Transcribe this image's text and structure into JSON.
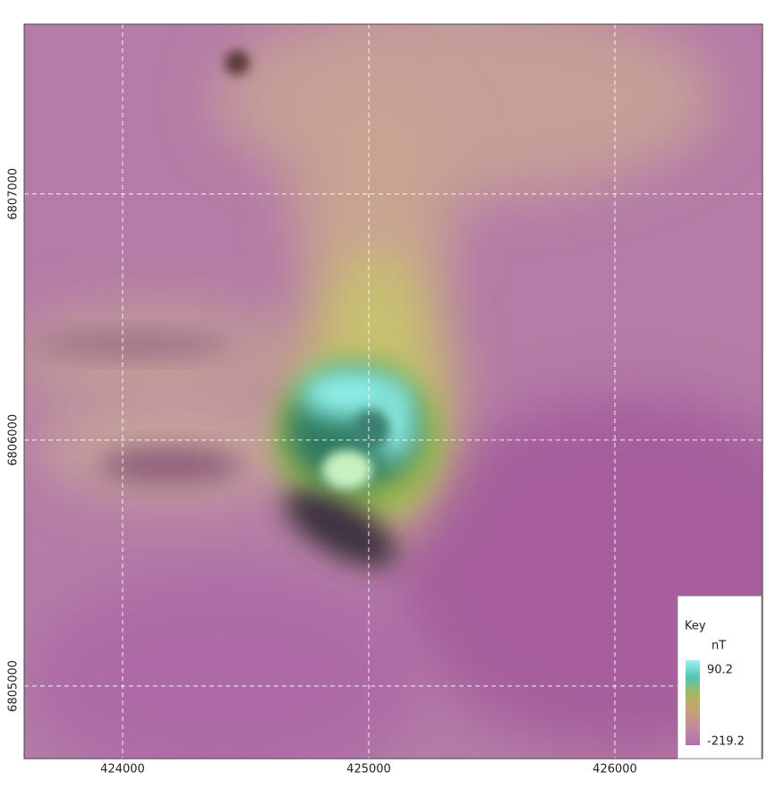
{
  "map": {
    "xlim": [
      423600,
      426600
    ],
    "ylim": [
      6804705,
      6807690
    ],
    "xticks": [
      424000,
      425000,
      426000
    ],
    "yticks": [
      6805000,
      6806000,
      6807000
    ],
    "grid": true,
    "legend": {
      "title": "Key",
      "unit": "nT",
      "max": 90.2,
      "min": -219.2,
      "colorscale": [
        "#9af2f0",
        "#52c6b8",
        "#a6b85a",
        "#c8a07a",
        "#c08a9c",
        "#b070b0"
      ]
    }
  }
}
